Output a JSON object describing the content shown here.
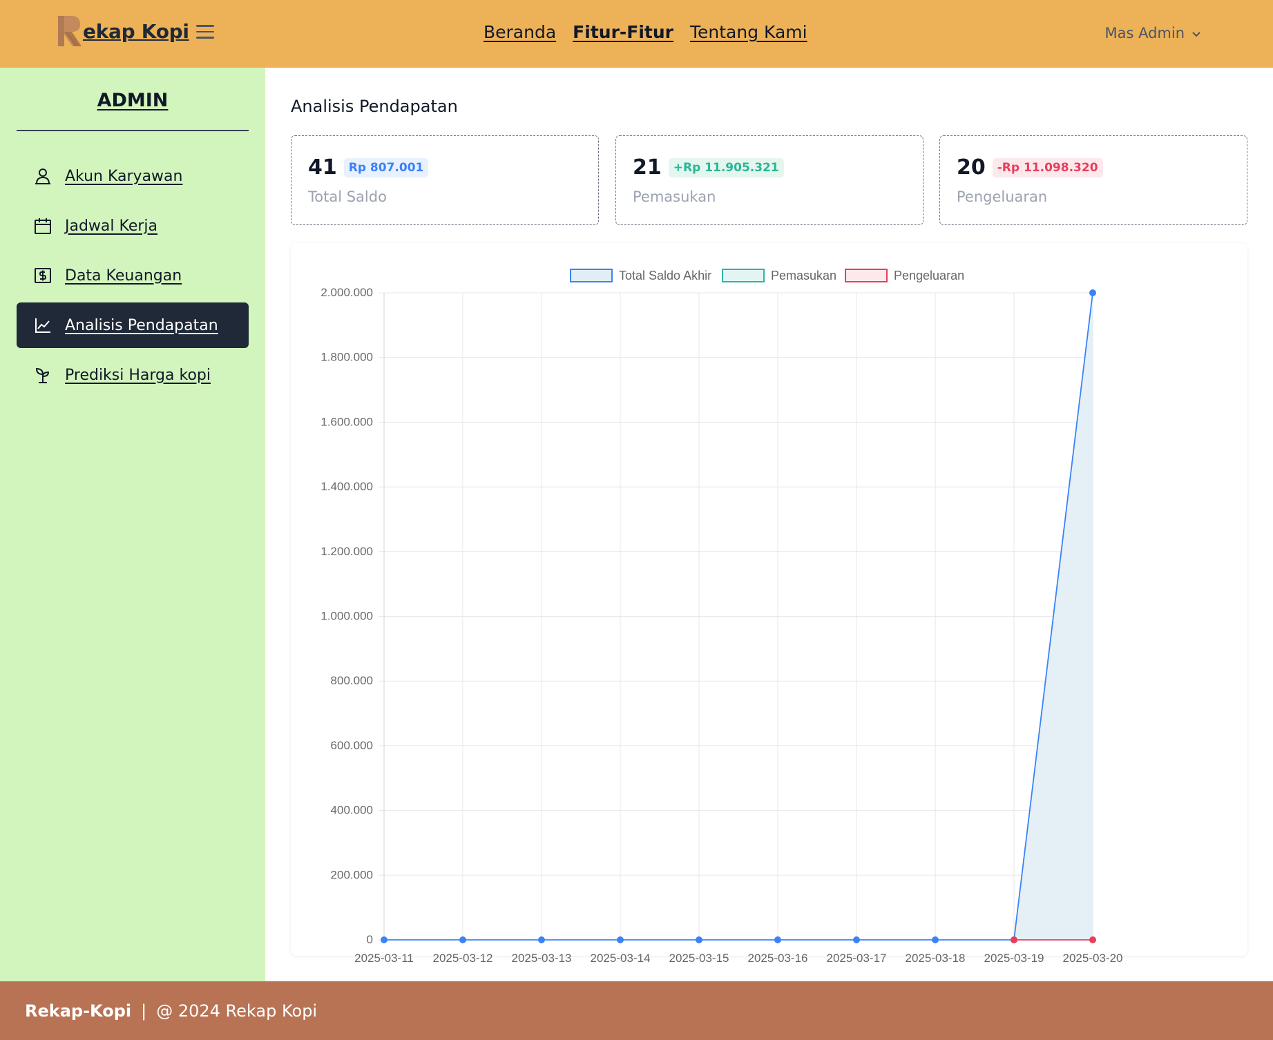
{
  "header": {
    "brand": "ekap Kopi",
    "brand_initial": "R",
    "nav": [
      {
        "label": "Beranda",
        "active": false
      },
      {
        "label": "Fitur-Fitur",
        "active": true
      },
      {
        "label": "Tentang Kami",
        "active": false
      }
    ],
    "user": "Mas Admin"
  },
  "sidebar": {
    "title": "ADMIN",
    "items": [
      {
        "label": "Akun Karyawan",
        "icon": "user-icon",
        "active": false
      },
      {
        "label": "Jadwal Kerja",
        "icon": "calendar-icon",
        "active": false
      },
      {
        "label": "Data Keuangan",
        "icon": "money-icon",
        "active": false
      },
      {
        "label": "Analisis Pendapatan",
        "icon": "chart-line-icon",
        "active": true
      },
      {
        "label": "Prediksi Harga kopi",
        "icon": "sprout-icon",
        "active": false
      }
    ]
  },
  "main": {
    "title": "Analisis Pendapatan",
    "stats": [
      {
        "count": "41",
        "badge": "Rp 807.001",
        "caption": "Total Saldo",
        "badge_color": "#3b82f6",
        "badge_bg": "#e8f1fd"
      },
      {
        "count": "21",
        "badge": "+Rp 11.905.321",
        "caption": "Pemasukan",
        "badge_color": "#2bb596",
        "badge_bg": "#e3f7ef"
      },
      {
        "count": "20",
        "badge": "-Rp 11.098.320",
        "caption": "Pengeluaran",
        "badge_color": "#e83e5c",
        "badge_bg": "#fde8ec"
      }
    ]
  },
  "chart_data": {
    "type": "line",
    "x": [
      "2025-03-11",
      "2025-03-12",
      "2025-03-13",
      "2025-03-14",
      "2025-03-15",
      "2025-03-16",
      "2025-03-17",
      "2025-03-18",
      "2025-03-19",
      "2025-03-20"
    ],
    "ylim": [
      0,
      2000000
    ],
    "yticks": [
      "0",
      "200.000",
      "400.000",
      "600.000",
      "800.000",
      "1.000.000",
      "1.200.000",
      "1.400.000",
      "1.600.000",
      "1.800.000",
      "2.000.000"
    ],
    "legend_position": "top-center",
    "grid": true,
    "series": [
      {
        "name": "Total Saldo Akhir",
        "color": "#3b82f6",
        "fill": "#e1eef5",
        "values": [
          0,
          0,
          0,
          0,
          0,
          0,
          0,
          0,
          0,
          2000000
        ]
      },
      {
        "name": "Pemasukan",
        "color": "#2bb5a8",
        "fill": "#e2f5f2",
        "values": [
          null,
          null,
          null,
          null,
          null,
          null,
          null,
          null,
          null,
          null
        ]
      },
      {
        "name": "Pengeluaran",
        "color": "#e83e5c",
        "fill": "#fde8ec",
        "values": [
          null,
          null,
          null,
          null,
          null,
          null,
          null,
          null,
          0,
          0
        ]
      }
    ]
  },
  "footer": {
    "brand": "Rekap-Kopi",
    "separator": "|",
    "copyright": "@ 2024 Rekap Kopi"
  }
}
